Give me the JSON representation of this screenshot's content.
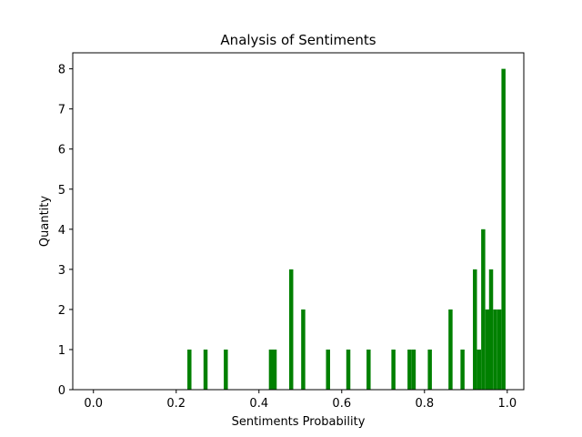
{
  "chart_data": {
    "type": "bar",
    "title": "Analysis of Sentiments",
    "xlabel": "Sentiments Probability",
    "ylabel": "Quantity",
    "xlim": [
      -0.05,
      1.04
    ],
    "ylim": [
      0,
      8.4
    ],
    "xticks": [
      "0.0",
      "0.2",
      "0.4",
      "0.6",
      "0.8",
      "1.0"
    ],
    "xtick_values": [
      0.0,
      0.2,
      0.4,
      0.6,
      0.8,
      1.0
    ],
    "yticks": [
      "0",
      "1",
      "2",
      "3",
      "4",
      "5",
      "6",
      "7",
      "8"
    ],
    "ytick_values": [
      0,
      1,
      2,
      3,
      4,
      5,
      6,
      7,
      8
    ],
    "bar_color": "#008000",
    "grid": false,
    "bin_width": 0.00985,
    "bars": [
      {
        "x": 0.227,
        "value": 1
      },
      {
        "x": 0.266,
        "value": 1
      },
      {
        "x": 0.315,
        "value": 1
      },
      {
        "x": 0.424,
        "value": 1
      },
      {
        "x": 0.433,
        "value": 1
      },
      {
        "x": 0.473,
        "value": 3
      },
      {
        "x": 0.502,
        "value": 2
      },
      {
        "x": 0.562,
        "value": 1
      },
      {
        "x": 0.611,
        "value": 1
      },
      {
        "x": 0.66,
        "value": 1
      },
      {
        "x": 0.72,
        "value": 1
      },
      {
        "x": 0.759,
        "value": 1
      },
      {
        "x": 0.769,
        "value": 1
      },
      {
        "x": 0.808,
        "value": 1
      },
      {
        "x": 0.858,
        "value": 2
      },
      {
        "x": 0.887,
        "value": 1
      },
      {
        "x": 0.917,
        "value": 3
      },
      {
        "x": 0.927,
        "value": 1
      },
      {
        "x": 0.937,
        "value": 4
      },
      {
        "x": 0.947,
        "value": 2
      },
      {
        "x": 0.956,
        "value": 3
      },
      {
        "x": 0.966,
        "value": 2
      },
      {
        "x": 0.976,
        "value": 2
      },
      {
        "x": 0.986,
        "value": 8
      }
    ]
  }
}
